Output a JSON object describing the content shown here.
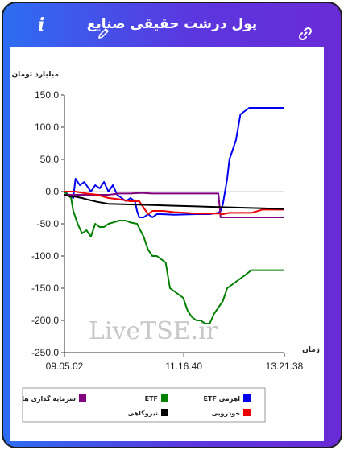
{
  "header": {
    "title": "پول درشت حقیقی صنایع",
    "info_icon": "info-icon",
    "edit_icon": "pencil-icon",
    "link_icon": "link-icon"
  },
  "watermark": "LiveTSE.ir",
  "chart_data": {
    "type": "line",
    "ylabel": "میلیارد تومان",
    "xlabel": "زمان",
    "ylim": [
      -250,
      150
    ],
    "y_ticks": [
      "150.0",
      "100.0",
      "50.0",
      "0.0",
      "-50.0",
      "-100.0",
      "-150.0",
      "-200.0",
      "-250.0"
    ],
    "y_tick_values": [
      150,
      100,
      50,
      0,
      -50,
      -100,
      -150,
      -200,
      -250
    ],
    "x_tick_labels": [
      "09.05.02",
      "11.16.40",
      "13.21.38"
    ],
    "x_tick_positions": [
      0,
      0.5426,
      1
    ],
    "grid": false,
    "zero_line": true,
    "legend_position": "bottom",
    "series": [
      {
        "name": "ETF اهرمی",
        "color": "#0000ee",
        "t": [
          0.0,
          0.04,
          0.05,
          0.07,
          0.09,
          0.11,
          0.12,
          0.14,
          0.16,
          0.18,
          0.2,
          0.22,
          0.24,
          0.26,
          0.28,
          0.3,
          0.32,
          0.33,
          0.34,
          0.36,
          0.38,
          0.4,
          0.42,
          0.44,
          0.5,
          0.6,
          0.66,
          0.7,
          0.71,
          0.72,
          0.73,
          0.74,
          0.75,
          0.76,
          0.78,
          0.79,
          0.8,
          0.82,
          0.84,
          0.86,
          0.88,
          1.0
        ],
        "v": [
          0,
          -10,
          20,
          10,
          15,
          5,
          0,
          10,
          5,
          15,
          0,
          10,
          -5,
          -10,
          -15,
          -10,
          -15,
          -30,
          -40,
          -40,
          -35,
          -40,
          -35,
          -35,
          -36,
          -35,
          -35,
          -33,
          -30,
          -20,
          0,
          20,
          50,
          60,
          80,
          100,
          120,
          125,
          130,
          130,
          130,
          130
        ]
      },
      {
        "name": "ETF",
        "color": "#008000",
        "t": [
          0.0,
          0.03,
          0.04,
          0.06,
          0.08,
          0.1,
          0.12,
          0.14,
          0.16,
          0.18,
          0.2,
          0.22,
          0.25,
          0.28,
          0.3,
          0.33,
          0.36,
          0.38,
          0.4,
          0.42,
          0.44,
          0.46,
          0.48,
          0.5,
          0.52,
          0.54,
          0.56,
          0.58,
          0.6,
          0.62,
          0.64,
          0.66,
          0.68,
          0.7,
          0.72,
          0.74,
          0.76,
          0.78,
          0.8,
          0.82,
          0.85,
          1.0
        ],
        "v": [
          0,
          -10,
          -30,
          -50,
          -65,
          -60,
          -70,
          -50,
          -55,
          -55,
          -50,
          -48,
          -45,
          -45,
          -48,
          -50,
          -70,
          -90,
          -100,
          -100,
          -105,
          -110,
          -150,
          -155,
          -160,
          -165,
          -185,
          -195,
          -200,
          -200,
          -205,
          -205,
          -190,
          -180,
          -170,
          -150,
          -145,
          -140,
          -135,
          -130,
          -122,
          -122
        ]
      },
      {
        "name": "سرمایه گذاری ها",
        "color": "#800080",
        "t": [
          0.0,
          0.1,
          0.2,
          0.25,
          0.3,
          0.35,
          0.4,
          0.6,
          0.7,
          0.71,
          0.72,
          0.74,
          0.8,
          0.9,
          1.0
        ],
        "v": [
          -5,
          -5,
          -5,
          -3,
          -3,
          -2,
          -3,
          -3,
          -3,
          -40,
          -40,
          -40,
          -40,
          -40,
          -40
        ]
      },
      {
        "name": "خودرویی",
        "color": "#ee0000",
        "t": [
          0.0,
          0.05,
          0.1,
          0.15,
          0.2,
          0.25,
          0.3,
          0.34,
          0.36,
          0.38,
          0.4,
          0.45,
          0.5,
          0.55,
          0.6,
          0.65,
          0.7,
          0.72,
          0.75,
          0.8,
          0.85,
          0.9,
          1.0
        ],
        "v": [
          0,
          0,
          -3,
          -5,
          -10,
          -12,
          -15,
          -15,
          -25,
          -35,
          -30,
          -30,
          -32,
          -33,
          -34,
          -34,
          -34,
          -35,
          -33,
          -33,
          -33,
          -28,
          -28
        ]
      },
      {
        "name": "نیروگاهی",
        "color": "#000000",
        "t": [
          0.0,
          0.02,
          0.05,
          0.08,
          0.1,
          0.15,
          0.2,
          0.3,
          0.4,
          0.5,
          0.6,
          0.7,
          0.8,
          0.9,
          1.0
        ],
        "v": [
          -5,
          -7,
          -8,
          -10,
          -12,
          -16,
          -19,
          -20,
          -21,
          -22,
          -23,
          -24,
          -25,
          -26,
          -27
        ]
      }
    ]
  }
}
